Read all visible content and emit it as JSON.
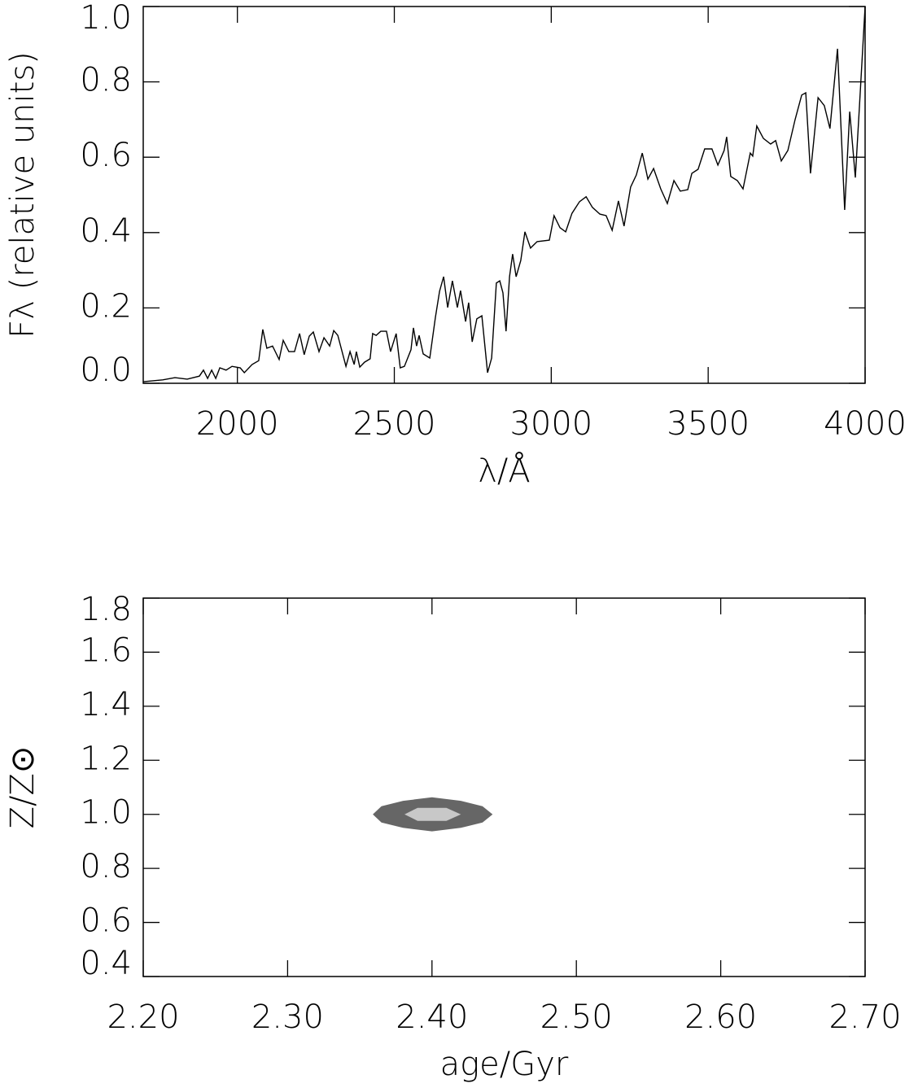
{
  "chart_data": [
    {
      "type": "line",
      "xlabel": "λ/Å",
      "ylabel": "Fλ (relative units)",
      "color": "#000000",
      "xlim": [
        1700,
        4000
      ],
      "ylim": [
        0,
        1
      ],
      "xticks": [
        2000,
        2500,
        3000,
        3500,
        4000
      ],
      "yticks": [
        {
          "value": 0,
          "label": "0.0"
        },
        0.2,
        0.4,
        0.6,
        0.8,
        {
          "value": 1,
          "label": "1.0"
        }
      ],
      "x": [
        1700,
        1762,
        1801,
        1840,
        1879,
        1892,
        1905,
        1918,
        1931,
        1944,
        1964,
        1983,
        2009,
        2022,
        2047,
        2068,
        2081,
        2094,
        2112,
        2133,
        2146,
        2164,
        2182,
        2198,
        2213,
        2229,
        2242,
        2260,
        2276,
        2294,
        2307,
        2320,
        2346,
        2359,
        2372,
        2379,
        2390,
        2405,
        2423,
        2431,
        2442,
        2457,
        2475,
        2488,
        2506,
        2519,
        2532,
        2553,
        2561,
        2571,
        2579,
        2592,
        2613,
        2631,
        2644,
        2657,
        2670,
        2685,
        2701,
        2711,
        2727,
        2737,
        2748,
        2763,
        2779,
        2797,
        2810,
        2825,
        2836,
        2846,
        2856,
        2867,
        2877,
        2888,
        2903,
        2916,
        2934,
        2955,
        2994,
        3009,
        3028,
        3046,
        3066,
        3090,
        3111,
        3131,
        3155,
        3175,
        3194,
        3214,
        3232,
        3253,
        3271,
        3290,
        3308,
        3326,
        3349,
        3370,
        3391,
        3411,
        3435,
        3448,
        3468,
        3489,
        3512,
        3531,
        3551,
        3559,
        3572,
        3593,
        3611,
        3634,
        3642,
        3655,
        3676,
        3699,
        3715,
        3733,
        3754,
        3777,
        3798,
        3811,
        3826,
        3850,
        3870,
        3888,
        3912,
        3935,
        3951,
        3969,
        3982,
        4000
      ],
      "values": [
        0.004,
        0.009,
        0.015,
        0.011,
        0.019,
        0.035,
        0.013,
        0.035,
        0.013,
        0.041,
        0.035,
        0.045,
        0.041,
        0.028,
        0.05,
        0.06,
        0.143,
        0.093,
        0.099,
        0.063,
        0.114,
        0.084,
        0.084,
        0.132,
        0.076,
        0.125,
        0.136,
        0.084,
        0.121,
        0.099,
        0.14,
        0.127,
        0.045,
        0.084,
        0.05,
        0.084,
        0.043,
        0.056,
        0.065,
        0.132,
        0.127,
        0.138,
        0.138,
        0.084,
        0.132,
        0.041,
        0.045,
        0.089,
        0.147,
        0.099,
        0.127,
        0.078,
        0.067,
        0.175,
        0.244,
        0.283,
        0.201,
        0.272,
        0.201,
        0.246,
        0.164,
        0.214,
        0.11,
        0.171,
        0.179,
        0.028,
        0.067,
        0.266,
        0.272,
        0.24,
        0.138,
        0.283,
        0.343,
        0.283,
        0.326,
        0.402,
        0.359,
        0.376,
        0.38,
        0.445,
        0.413,
        0.402,
        0.451,
        0.482,
        0.495,
        0.467,
        0.449,
        0.445,
        0.406,
        0.484,
        0.417,
        0.521,
        0.553,
        0.611,
        0.542,
        0.57,
        0.516,
        0.477,
        0.538,
        0.51,
        0.514,
        0.557,
        0.568,
        0.622,
        0.622,
        0.579,
        0.618,
        0.654,
        0.549,
        0.538,
        0.516,
        0.611,
        0.603,
        0.683,
        0.65,
        0.635,
        0.644,
        0.59,
        0.618,
        0.7,
        0.765,
        0.771,
        0.557,
        0.758,
        0.737,
        0.676,
        0.888,
        0.46,
        0.721,
        0.546,
        0.737,
        1.0
      ]
    },
    {
      "type": "contour",
      "xlabel": "age/Gyr",
      "ylabel": "Z/Z⊙",
      "xlim": [
        2.2,
        2.7
      ],
      "ylim": [
        0.4,
        1.8
      ],
      "xticks": [
        {
          "value": 2.2,
          "label": "2.20"
        },
        {
          "value": 2.3,
          "label": "2.30"
        },
        {
          "value": 2.4,
          "label": "2.40"
        },
        {
          "value": 2.5,
          "label": "2.50"
        },
        {
          "value": 2.6,
          "label": "2.60"
        },
        {
          "value": 2.7,
          "label": "2.70"
        }
      ],
      "yticks": [
        0.4,
        0.6,
        0.8,
        {
          "value": 1,
          "label": "1.0"
        },
        1.2,
        1.4,
        1.6,
        1.8
      ],
      "contours": [
        {
          "color": "#666666",
          "x": [
            2.359,
            2.365,
            2.38,
            2.4,
            2.42,
            2.435,
            2.442,
            2.435,
            2.42,
            2.4,
            2.38,
            2.365
          ],
          "y": [
            1.0,
            1.03,
            1.05,
            1.063,
            1.05,
            1.03,
            1.0,
            0.97,
            0.95,
            0.937,
            0.95,
            0.97
          ]
        },
        {
          "color": "#c8c8c8",
          "x": [
            2.381,
            2.39,
            2.41,
            2.42,
            2.41,
            2.39
          ],
          "y": [
            1.0,
            1.024,
            1.024,
            1.0,
            0.976,
            0.976
          ]
        }
      ]
    }
  ]
}
